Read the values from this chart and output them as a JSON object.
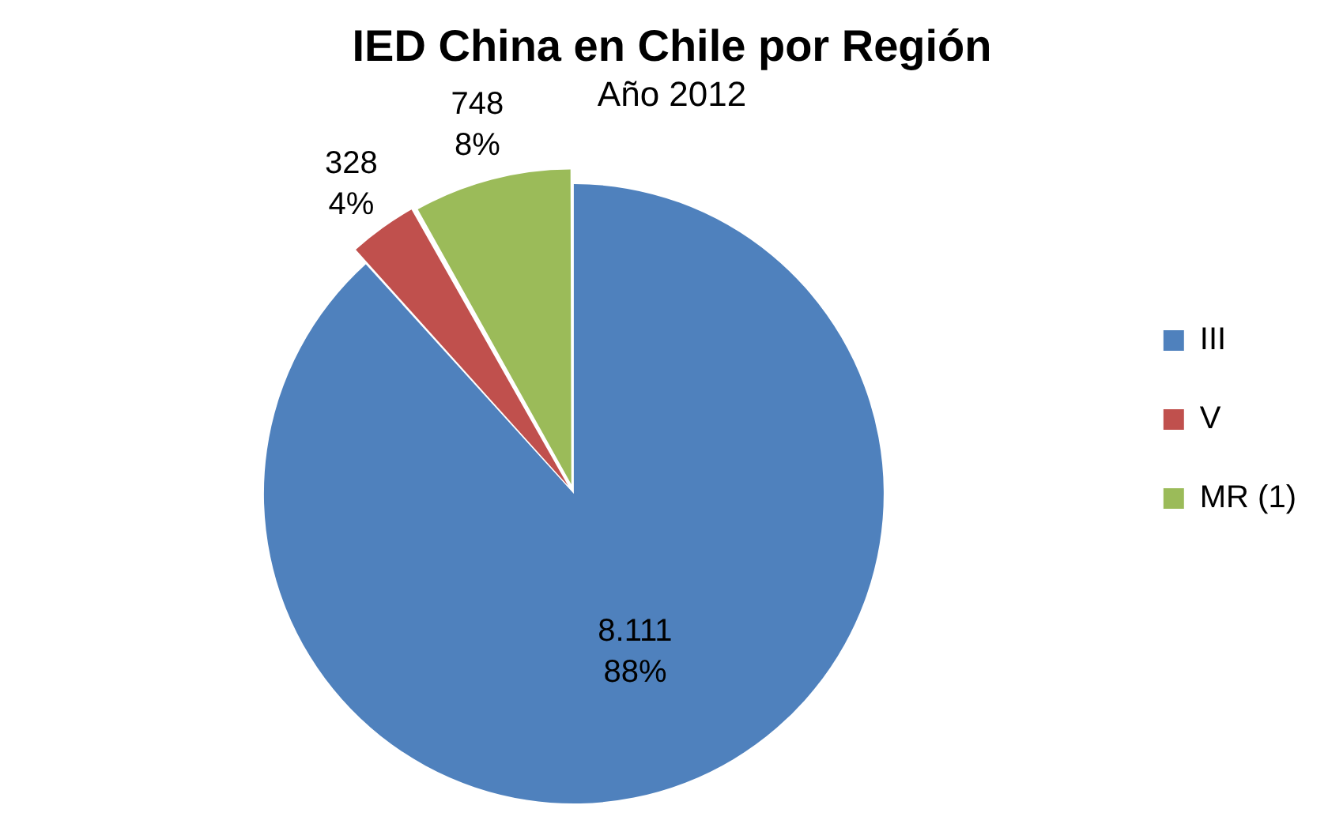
{
  "chart_data": {
    "type": "pie",
    "title": "IED China en Chile por Región",
    "subtitle": "Año 2012",
    "categories": [
      "III",
      "V",
      "MR (1)"
    ],
    "values": [
      8111,
      328,
      748
    ],
    "colors": [
      "#4f81bd",
      "#c0504d",
      "#9bbb59"
    ],
    "value_labels": [
      "8.111\n88%",
      "328\n4%",
      "748\n8%"
    ],
    "legend": "right"
  }
}
